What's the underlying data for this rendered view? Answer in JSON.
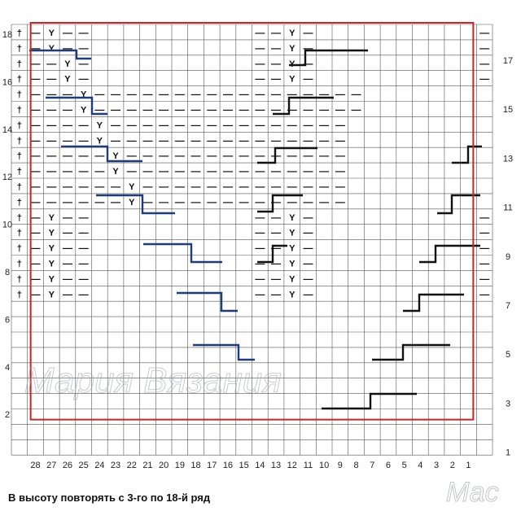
{
  "chart": {
    "columns": 28,
    "rows": 18,
    "col_numbers": [
      "28",
      "27",
      "26",
      "25",
      "24",
      "23",
      "22",
      "21",
      "20",
      "19",
      "18",
      "17",
      "16",
      "15",
      "14",
      "13",
      "12",
      "11",
      "10",
      "9",
      "8",
      "7",
      "6",
      "5",
      "4",
      "3",
      "2",
      "1"
    ],
    "left_row_numbers": [
      "18",
      "16",
      "14",
      "12",
      "10",
      "8",
      "6",
      "4",
      "2"
    ],
    "right_row_numbers": [
      "17",
      "15",
      "13",
      "11",
      "9",
      "7",
      "5",
      "3",
      "1"
    ],
    "symbols": {
      "edge": "†",
      "purl": "—",
      "slip": "Y"
    },
    "repeat_frame_color": "#c0282a",
    "shift_line_dark": "#111111",
    "shift_line_blue": "#1f3c78",
    "grid": [
      "†—Y——··········——Y—··········————†",
      "†—Y——··········——Y—··········————†",
      "†——Y—··········——Y—··········————†",
      "†——Y—··········——Y—··········————†",
      "†———Y—————————————————·········————†",
      "†———Y—————————————————·········————†",
      "†————Y———————————————··········————†",
      "†————Y———————————————··········————†",
      "†—————Y——————————————··········————†",
      "†—————Y——————————————··········————†",
      "†——————Y—————————————··········————†",
      "†——————Y—————————————··········————†",
      "†—Y——··········——Y—··········————†",
      "†—Y——··········——Y—··········————†",
      "†—Y——··········——Y—··········————†",
      "†—Y——··········——Y—··········————†",
      "†—Y——··········——Y—··········————†",
      "†—Y——··········——Y—··········————†"
    ]
  },
  "footer": {
    "text": "В высоту повторять с 3-го по 18-й ряд"
  },
  "watermark": {
    "main": "Мария Вязания",
    "corner": "Мас"
  }
}
